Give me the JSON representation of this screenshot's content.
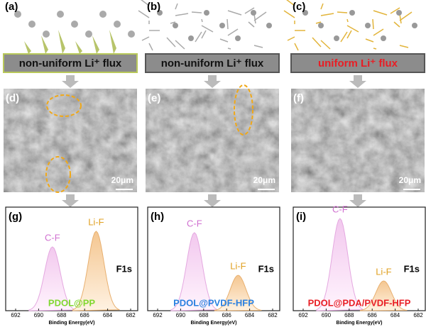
{
  "panels": [
    {
      "schematic": {
        "label": "(a)",
        "caption": "non-uniform Li⁺ flux"
      },
      "sem": {
        "label": "(d)",
        "scale": "20μm"
      },
      "xps": {
        "label": "(g)",
        "peak1": "C-F",
        "peak2": "Li-F",
        "region": "F1s",
        "sample": "PDOL@PP"
      }
    },
    {
      "schematic": {
        "label": "(b)",
        "caption": "non-uniform Li⁺ flux"
      },
      "sem": {
        "label": "(e)",
        "scale": "20μm"
      },
      "xps": {
        "label": "(h)",
        "peak1": "C-F",
        "peak2": "Li-F",
        "region": "F1s",
        "sample": "PDOL@PVDF-HFP"
      }
    },
    {
      "schematic": {
        "label": "(c)",
        "caption": "uniform Li⁺ flux"
      },
      "sem": {
        "label": "(f)",
        "scale": "20μm"
      },
      "xps": {
        "label": "(i)",
        "peak1": "C-F",
        "peak2": "Li-F",
        "region": "F1s",
        "sample": "PDOL@PDA/PVDF-HFP"
      }
    }
  ],
  "xps_axis": {
    "ticks": [
      "692",
      "690",
      "688",
      "686",
      "684",
      "682"
    ],
    "label": "Binding Energy(eV)"
  }
}
